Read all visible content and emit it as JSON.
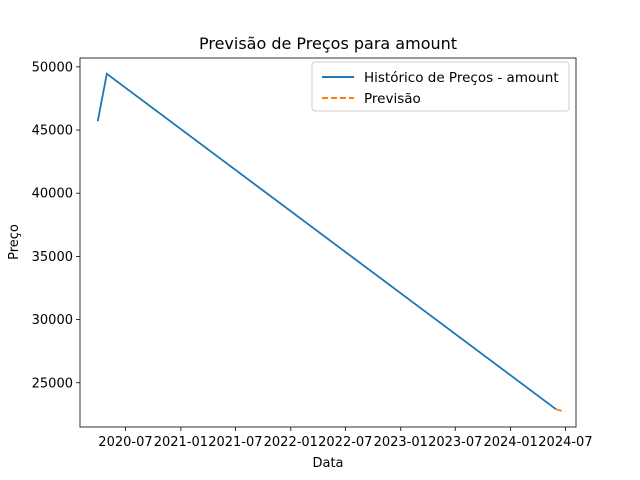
{
  "chart_data": {
    "type": "line",
    "title": "Previsão de Preços para amount",
    "xlabel": "Data",
    "ylabel": "Preço",
    "x_type": "date",
    "xlim": [
      "2020-02-01",
      "2024-08-05"
    ],
    "ylim": [
      21500,
      50700
    ],
    "x_ticks": [
      {
        "value": "2020-07-01",
        "label": "2020-07"
      },
      {
        "value": "2021-01-01",
        "label": "2021-01"
      },
      {
        "value": "2021-07-01",
        "label": "2021-07"
      },
      {
        "value": "2022-01-01",
        "label": "2022-01"
      },
      {
        "value": "2022-07-01",
        "label": "2022-07"
      },
      {
        "value": "2023-01-01",
        "label": "2023-01"
      },
      {
        "value": "2023-07-01",
        "label": "2023-07"
      },
      {
        "value": "2024-01-01",
        "label": "2024-01"
      },
      {
        "value": "2024-07-01",
        "label": "2024-07"
      }
    ],
    "y_ticks": [
      25000,
      30000,
      35000,
      40000,
      45000,
      50000
    ],
    "grid": false,
    "legend_position": "top-right",
    "series": [
      {
        "name": "Histórico de Preços - amount",
        "color": "#1f77b4",
        "style": "solid",
        "points": [
          {
            "x": "2020-03-31",
            "y": 45700
          },
          {
            "x": "2020-04-30",
            "y": 49450
          },
          {
            "x": "2024-05-31",
            "y": 22900
          }
        ]
      },
      {
        "name": "Previsão",
        "color": "#ff7f0e",
        "style": "dashed",
        "points": [
          {
            "x": "2024-05-31",
            "y": 22900
          },
          {
            "x": "2024-06-30",
            "y": 22700
          }
        ]
      }
    ]
  }
}
